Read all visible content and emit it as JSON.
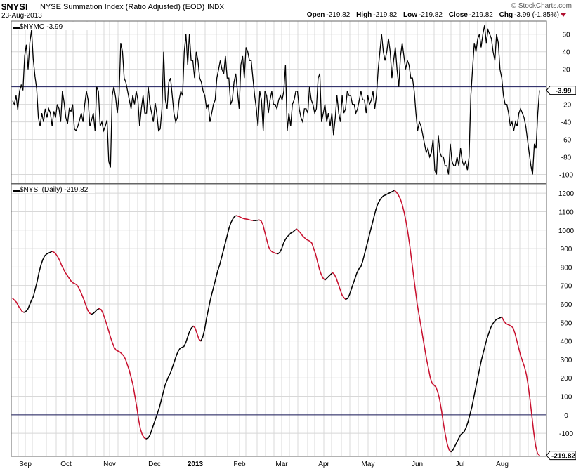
{
  "header": {
    "symbol": "$NYSI",
    "name": "NYSE Summation Index (Ratio Adjusted) (EOD)",
    "exchange": "INDX",
    "watermark": "© StockCharts.com",
    "date": "23-Aug-2013",
    "open_label": "Open",
    "open": "-219.82",
    "high_label": "High",
    "high": "-219.82",
    "low_label": "Low",
    "low": "-219.82",
    "close_label": "Close",
    "close": "-219.82",
    "chg_label": "Chg",
    "chg": "-3.99 (-1.85%)"
  },
  "colors": {
    "up": "#000000",
    "down": "#c8102e",
    "grid": "#d8d8d8",
    "zero": "#1a1a5a"
  },
  "chart_data": [
    {
      "type": "line",
      "title": "$NYMO  -3.99",
      "last_value": "-3.99",
      "ylim": [
        -110,
        75
      ],
      "yticks": [
        60,
        40,
        20,
        -20,
        -40,
        -60,
        -80,
        -100
      ],
      "grid": true,
      "x_tick_labels": [
        "Sep",
        "Oct",
        "Nov",
        "Dec",
        "2013",
        "Feb",
        "Mar",
        "Apr",
        "May",
        "Jun",
        "Jul",
        "Aug"
      ],
      "series": [
        {
          "values": [
            -16,
            -20,
            -10,
            -26,
            -5,
            2,
            -4,
            35,
            48,
            20,
            50,
            65,
            32,
            12,
            -2,
            -35,
            -45,
            -30,
            -40,
            -25,
            -35,
            -25,
            -30,
            -45,
            -28,
            -35,
            -20,
            -25,
            -40,
            -5,
            -18,
            -35,
            -42,
            -25,
            -28,
            -20,
            -48,
            -50,
            -45,
            -38,
            -30,
            -40,
            -20,
            -5,
            -15,
            -45,
            -38,
            -30,
            -50,
            0,
            -5,
            -45,
            -40,
            -50,
            -45,
            -38,
            -85,
            -92,
            -10,
            0,
            -12,
            -30,
            -10,
            50,
            40,
            10,
            5,
            -5,
            -15,
            -25,
            -10,
            -20,
            -5,
            -15,
            -45,
            -25,
            -10,
            -30,
            -30,
            0,
            -20,
            -30,
            -40,
            -18,
            -30,
            -50,
            -48,
            -25,
            40,
            -15,
            -25,
            5,
            10,
            -10,
            -30,
            -40,
            -35,
            -15,
            -5,
            -10,
            40,
            60,
            25,
            60,
            30,
            30,
            10,
            40,
            30,
            10,
            5,
            -5,
            -10,
            -25,
            -20,
            -40,
            -30,
            -20,
            -15,
            10,
            20,
            30,
            20,
            15,
            35,
            10,
            10,
            -20,
            -15,
            5,
            15,
            -5,
            -25,
            25,
            35,
            10,
            45,
            40,
            30,
            30,
            10,
            -10,
            -25,
            -45,
            -5,
            -15,
            -50,
            -5,
            -10,
            -30,
            -15,
            -5,
            -20,
            -20,
            -25,
            -15,
            -10,
            -15,
            -5,
            25,
            -50,
            -30,
            -45,
            -20,
            -15,
            -5,
            -5,
            -25,
            -35,
            -40,
            -25,
            -25,
            -30,
            0,
            -15,
            -20,
            -30,
            -25,
            10,
            15,
            -40,
            -30,
            -20,
            -40,
            -30,
            -45,
            -30,
            -55,
            -35,
            -10,
            -30,
            -40,
            -10,
            -30,
            -25,
            -5,
            -10,
            -10,
            -20,
            -20,
            -30,
            -25,
            -15,
            -5,
            -15,
            -15,
            -30,
            -10,
            -20,
            -15,
            -5,
            -25,
            -10,
            20,
            40,
            60,
            40,
            30,
            40,
            55,
            40,
            10,
            30,
            45,
            20,
            0,
            35,
            50,
            35,
            20,
            30,
            25,
            10,
            10,
            -5,
            -30,
            -50,
            -40,
            -45,
            -55,
            -65,
            -75,
            -70,
            -80,
            -75,
            -60,
            -95,
            -100,
            -55,
            -75,
            -80,
            -80,
            -90,
            -90,
            -100,
            -65,
            -85,
            -90,
            -90,
            -80,
            -90,
            -70,
            -85,
            -90,
            -85,
            -95,
            -80,
            -10,
            20,
            50,
            40,
            55,
            60,
            45,
            60,
            70,
            50,
            65,
            60,
            55,
            40,
            30,
            60,
            50,
            20,
            10,
            -10,
            -20,
            -20,
            -30,
            -45,
            -40,
            -50,
            -40,
            -45,
            -30,
            -25,
            -30,
            -35,
            -45,
            -60,
            -75,
            -90,
            -100,
            -65,
            -70,
            -30,
            -3.99
          ]
        }
      ]
    },
    {
      "type": "line",
      "title": "$NYSI (Daily)  -219.82",
      "last_value": "-219.82",
      "ylim": [
        -225,
        1250
      ],
      "yticks": [
        1200,
        1100,
        1000,
        900,
        800,
        700,
        600,
        500,
        400,
        300,
        200,
        100,
        0,
        -100
      ],
      "yticks_hidden": [
        -200
      ],
      "grid": true,
      "x_tick_labels": [
        "Sep",
        "Oct",
        "Nov",
        "Dec",
        "2013",
        "Feb",
        "Mar",
        "Apr",
        "May",
        "Jun",
        "Jul",
        "Aug"
      ],
      "series": [
        {
          "values": [
            630,
            620,
            610,
            590,
            575,
            560,
            555,
            560,
            570,
            595,
            620,
            640,
            680,
            720,
            770,
            810,
            840,
            860,
            870,
            875,
            880,
            885,
            880,
            870,
            855,
            835,
            810,
            790,
            770,
            755,
            740,
            725,
            715,
            710,
            705,
            690,
            670,
            645,
            620,
            590,
            565,
            550,
            545,
            550,
            560,
            570,
            575,
            570,
            550,
            520,
            490,
            455,
            420,
            390,
            365,
            350,
            345,
            340,
            330,
            320,
            300,
            270,
            240,
            200,
            160,
            100,
            40,
            -30,
            -80,
            -110,
            -125,
            -130,
            -125,
            -110,
            -80,
            -50,
            -20,
            10,
            40,
            80,
            120,
            160,
            185,
            210,
            230,
            260,
            290,
            320,
            345,
            360,
            365,
            370,
            390,
            420,
            450,
            470,
            480,
            470,
            440,
            410,
            400,
            420,
            460,
            520,
            570,
            620,
            660,
            700,
            740,
            780,
            810,
            850,
            890,
            930,
            970,
            1010,
            1040,
            1060,
            1075,
            1078,
            1075,
            1070,
            1065,
            1062,
            1060,
            1058,
            1055,
            1053,
            1052,
            1052,
            1053,
            1055,
            1050,
            1030,
            990,
            950,
            910,
            890,
            882,
            878,
            874,
            872,
            880,
            900,
            930,
            950,
            965,
            975,
            985,
            990,
            1000,
            1005,
            995,
            985,
            970,
            960,
            950,
            945,
            940,
            930,
            900,
            870,
            830,
            790,
            760,
            740,
            730,
            740,
            750,
            760,
            770,
            760,
            740,
            710,
            680,
            650,
            635,
            625,
            630,
            650,
            680,
            710,
            740,
            770,
            790,
            800,
            830,
            870,
            910,
            950,
            990,
            1030,
            1070,
            1110,
            1140,
            1160,
            1175,
            1185,
            1190,
            1195,
            1200,
            1205,
            1210,
            1215,
            1205,
            1190,
            1170,
            1140,
            1100,
            1050,
            990,
            920,
            840,
            760,
            680,
            600,
            540,
            480,
            420,
            360,
            300,
            250,
            200,
            170,
            160,
            150,
            120,
            80,
            20,
            -50,
            -110,
            -160,
            -190,
            -200,
            -190,
            -170,
            -150,
            -130,
            -110,
            -100,
            -90,
            -70,
            -40,
            0,
            40,
            90,
            140,
            190,
            240,
            290,
            330,
            370,
            410,
            440,
            470,
            490,
            505,
            515,
            520,
            525,
            530,
            510,
            495,
            490,
            485,
            480,
            470,
            440,
            400,
            360,
            320,
            290,
            260,
            220,
            160,
            80,
            -10,
            -100,
            -170,
            -210,
            -219.82
          ]
        }
      ]
    }
  ]
}
